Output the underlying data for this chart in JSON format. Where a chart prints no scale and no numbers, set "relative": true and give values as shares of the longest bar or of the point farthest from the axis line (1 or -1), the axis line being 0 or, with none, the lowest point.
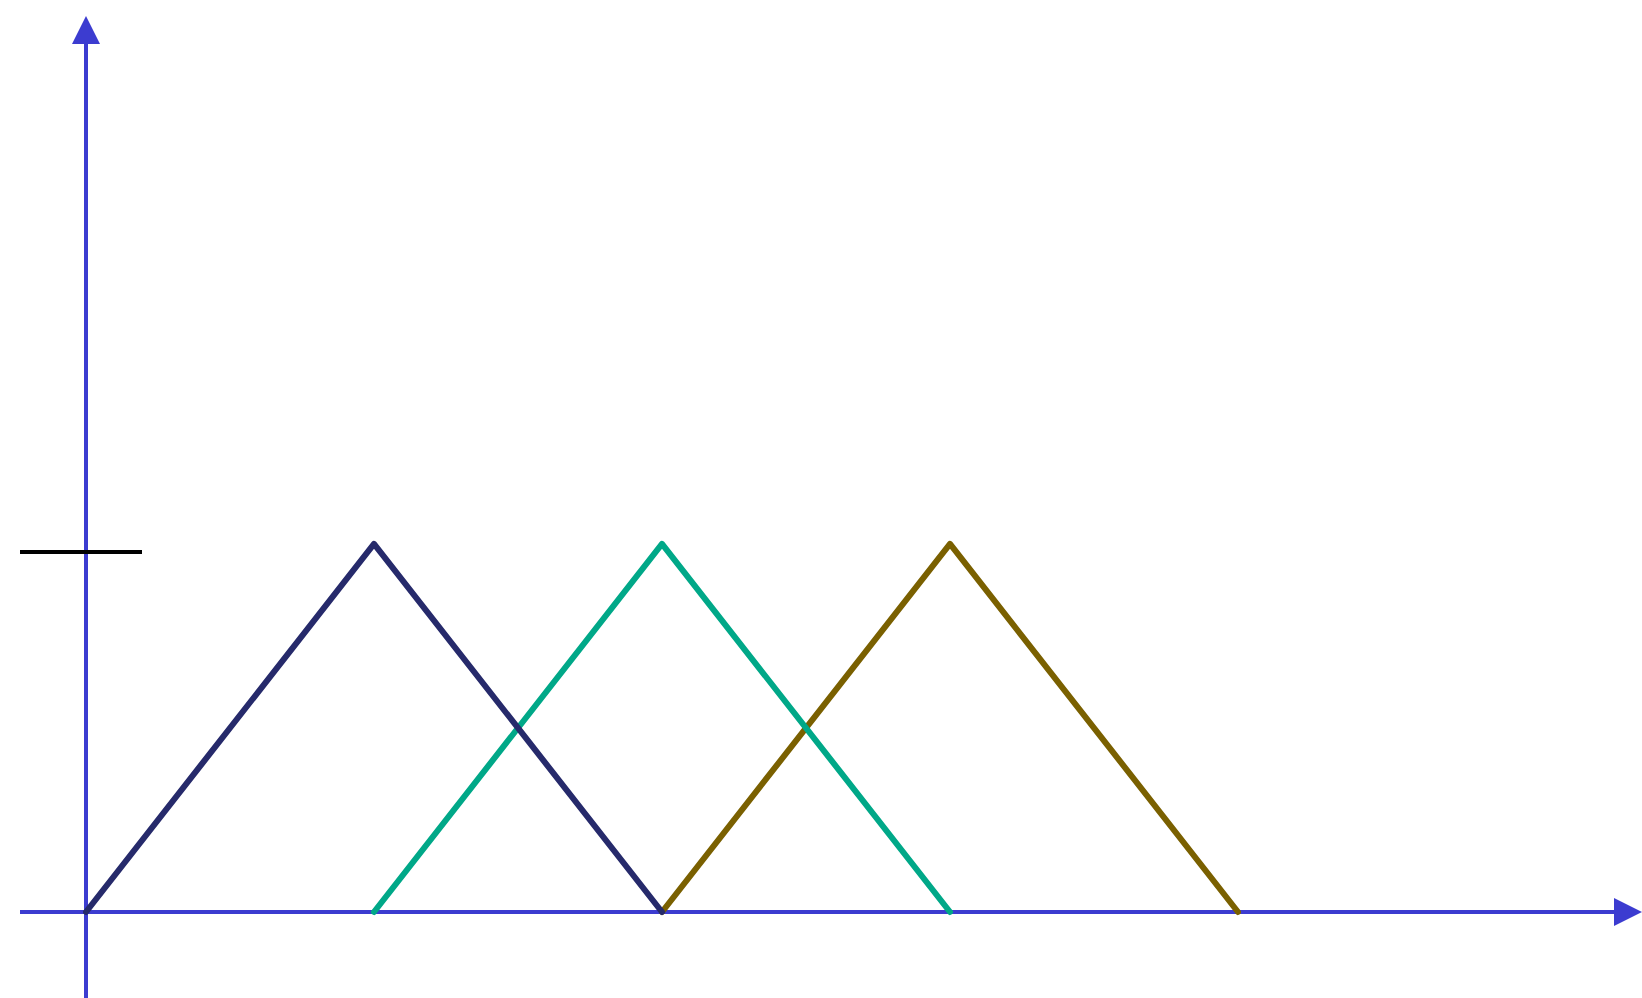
{
  "chart_data": {
    "type": "line",
    "relative": true,
    "categories": [
      null,
      null,
      null,
      null,
      null
    ],
    "series": [
      {
        "color": "#262a6b",
        "values": [
          0,
          1,
          0,
          null,
          null
        ]
      },
      {
        "color": "#00a888",
        "values": [
          null,
          0,
          1,
          0,
          null
        ]
      },
      {
        "color": "#7a6000",
        "values": [
          null,
          null,
          0,
          1,
          0
        ]
      }
    ],
    "marker": "none",
    "line_style": "solid",
    "grid": false,
    "legend": false,
    "tick_labels": false
  }
}
